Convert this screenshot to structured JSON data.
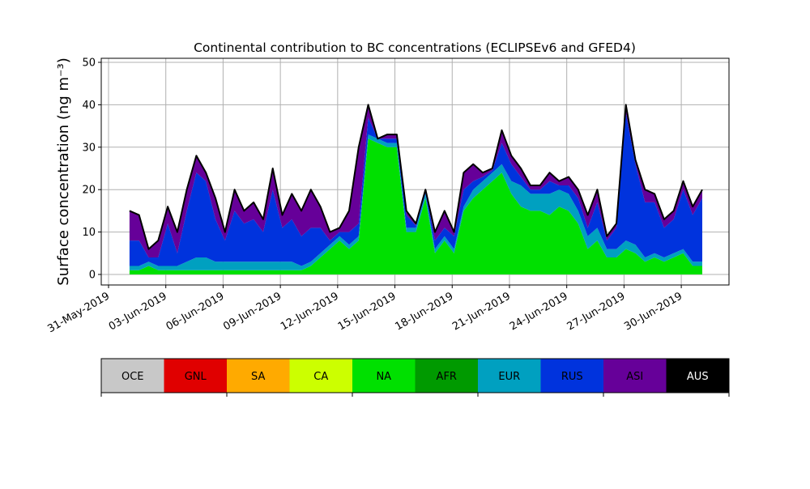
{
  "chart_data": {
    "type": "area",
    "stacked": true,
    "title": "Continental contribution to BC concentrations (ECLIPSEv6 and GFED4)",
    "ylabel": "Surface concentration (ng m⁻³)",
    "xlabel": "",
    "ylim": [
      -2.5,
      51
    ],
    "xlim_days_since_31May": [
      -0.4,
      32.5
    ],
    "grid": true,
    "yticks": [
      0,
      10,
      20,
      30,
      40,
      50
    ],
    "xticks": [
      {
        "day": 0,
        "label": "31-May-2019"
      },
      {
        "day": 3,
        "label": "03-Jun-2019"
      },
      {
        "day": 6,
        "label": "06-Jun-2019"
      },
      {
        "day": 9,
        "label": "09-Jun-2019"
      },
      {
        "day": 12,
        "label": "12-Jun-2019"
      },
      {
        "day": 15,
        "label": "15-Jun-2019"
      },
      {
        "day": 18,
        "label": "18-Jun-2019"
      },
      {
        "day": 21,
        "label": "21-Jun-2019"
      },
      {
        "day": 24,
        "label": "24-Jun-2019"
      },
      {
        "day": 27,
        "label": "27-Jun-2019"
      },
      {
        "day": 30,
        "label": "30-Jun-2019"
      }
    ],
    "x_days_start": 1.1,
    "x_days_step": 0.5,
    "total": [
      15,
      14,
      6,
      8,
      16,
      10,
      20,
      28,
      24,
      18,
      10,
      20,
      15,
      17,
      13,
      25,
      14,
      19,
      15,
      20,
      16,
      10,
      11,
      15,
      30,
      40,
      32,
      33,
      33,
      15,
      12,
      20,
      10,
      15,
      10,
      24,
      26,
      24,
      25,
      34,
      28,
      25,
      21,
      21,
      24,
      22,
      23,
      20,
      14,
      20,
      9,
      12,
      40,
      27,
      20,
      19,
      13,
      15,
      22,
      16,
      20
    ],
    "series": [
      {
        "name": "NA",
        "color": "#00e000",
        "values": [
          1,
          1,
          2,
          1,
          1,
          1,
          1,
          1,
          1,
          1,
          1,
          1,
          1,
          1,
          1,
          1,
          1,
          1,
          1,
          2,
          4,
          6,
          8,
          6,
          8,
          32,
          31,
          30,
          30,
          10,
          10,
          18,
          5,
          8,
          5,
          15,
          18,
          20,
          22,
          24,
          19,
          16,
          15,
          15,
          14,
          16,
          15,
          12,
          6,
          8,
          4,
          4,
          6,
          5,
          3,
          4,
          3,
          4,
          5,
          2,
          2
        ]
      },
      {
        "name": "EUR",
        "color": "#00a0c0",
        "values": [
          1,
          1,
          1,
          1,
          1,
          1,
          2,
          3,
          3,
          2,
          2,
          2,
          2,
          2,
          2,
          2,
          2,
          2,
          1,
          1,
          1,
          1,
          1,
          1,
          1,
          1,
          1,
          1,
          1,
          1,
          1,
          1,
          1,
          1,
          1,
          1,
          2,
          2,
          2,
          2,
          3,
          5,
          4,
          4,
          5,
          4,
          4,
          3,
          3,
          3,
          2,
          2,
          2,
          2,
          1,
          1,
          1,
          1,
          1,
          1,
          1
        ]
      },
      {
        "name": "RUS",
        "color": "#0033dd",
        "values": [
          6,
          6,
          1,
          2,
          10,
          3,
          12,
          20,
          18,
          10,
          5,
          12,
          9,
          10,
          7,
          17,
          8,
          10,
          7,
          8,
          6,
          1,
          1,
          3,
          3,
          4,
          0,
          1,
          1,
          3,
          0.5,
          1,
          2,
          2,
          3,
          4,
          2,
          1,
          0.5,
          5,
          4,
          2,
          1,
          1,
          3,
          1,
          2,
          3,
          2,
          6,
          2,
          5,
          30,
          19,
          13,
          12,
          7,
          8,
          14,
          11,
          15
        ]
      },
      {
        "name": "ASI",
        "color": "#660099",
        "values": "remainder-to-total"
      }
    ],
    "legend": [
      {
        "label": "OCE",
        "color": "#c8c8c8"
      },
      {
        "label": "GNL",
        "color": "#e00000"
      },
      {
        "label": "SA",
        "color": "#ffaa00"
      },
      {
        "label": "CA",
        "color": "#ccff00"
      },
      {
        "label": "NA",
        "color": "#00e000"
      },
      {
        "label": "AFR",
        "color": "#009a00"
      },
      {
        "label": "EUR",
        "color": "#00a0c0"
      },
      {
        "label": "RUS",
        "color": "#0033dd"
      },
      {
        "label": "ASI",
        "color": "#660099"
      },
      {
        "label": "AUS",
        "color": "#000000"
      }
    ],
    "legend_placement": "bottom colorbar"
  }
}
